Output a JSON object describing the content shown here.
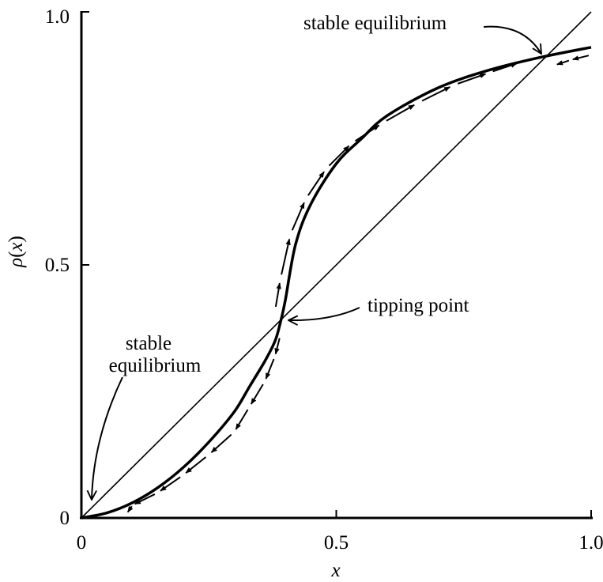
{
  "chart_data": {
    "type": "line",
    "title": "",
    "xlabel": "x",
    "ylabel": {
      "func": "ρ",
      "open": "(",
      "var": "x",
      "close": ")"
    },
    "xlim": [
      0,
      1
    ],
    "ylim": [
      0,
      1
    ],
    "xticks": [
      {
        "value": 0,
        "label": "0"
      },
      {
        "value": 0.5,
        "label": "0.5"
      },
      {
        "value": 1,
        "label": "1.0"
      }
    ],
    "yticks": [
      {
        "value": 0,
        "label": "0"
      },
      {
        "value": 0.5,
        "label": "0.5"
      },
      {
        "value": 1,
        "label": "1.0"
      }
    ],
    "grid": false,
    "series": [
      {
        "key": "identity",
        "style": "thin-solid",
        "x": [
          0,
          1
        ],
        "y": [
          0,
          1
        ]
      },
      {
        "key": "rho",
        "style": "thick-solid",
        "x": [
          0,
          0.05,
          0.1,
          0.15,
          0.2,
          0.25,
          0.3,
          0.33,
          0.36,
          0.38,
          0.39,
          0.4,
          0.42,
          0.45,
          0.5,
          0.55,
          0.6,
          0.7,
          0.8,
          0.9,
          1.0
        ],
        "y": [
          0,
          0.01,
          0.03,
          0.06,
          0.1,
          0.15,
          0.21,
          0.26,
          0.31,
          0.35,
          0.385,
          0.43,
          0.54,
          0.62,
          0.7,
          0.75,
          0.795,
          0.85,
          0.885,
          0.91,
          0.93
        ]
      }
    ],
    "flow_arrows": [
      {
        "direction": "down",
        "x": [
          0.39,
          0.38,
          0.36,
          0.33,
          0.3,
          0.25,
          0.2,
          0.15,
          0.1,
          0.09
        ],
        "y": [
          0.36,
          0.32,
          0.27,
          0.22,
          0.17,
          0.125,
          0.085,
          0.05,
          0.025,
          0.01
        ]
      },
      {
        "direction": "up",
        "x": [
          0.38,
          0.39,
          0.41,
          0.44,
          0.48,
          0.53,
          0.59,
          0.66,
          0.73,
          0.8,
          0.86
        ],
        "y": [
          0.41,
          0.47,
          0.56,
          0.63,
          0.69,
          0.74,
          0.78,
          0.82,
          0.855,
          0.88,
          0.9
        ]
      },
      {
        "direction": "left",
        "x": [
          1.0,
          0.96,
          0.93
        ],
        "y": [
          0.915,
          0.905,
          0.895
        ]
      }
    ],
    "annotations": [
      {
        "key": "stable_top",
        "lines": [
          "stable equilibrium"
        ],
        "anchor": "start",
        "point": [
          0.91,
          0.91
        ]
      },
      {
        "key": "tipping",
        "lines": [
          "tipping point"
        ],
        "anchor": "start",
        "point": [
          0.39,
          0.39
        ]
      },
      {
        "key": "stable_bottom",
        "lines": [
          "stable",
          "equilibrium"
        ],
        "anchor": "middle",
        "point": [
          0.02,
          0.03
        ]
      }
    ]
  }
}
